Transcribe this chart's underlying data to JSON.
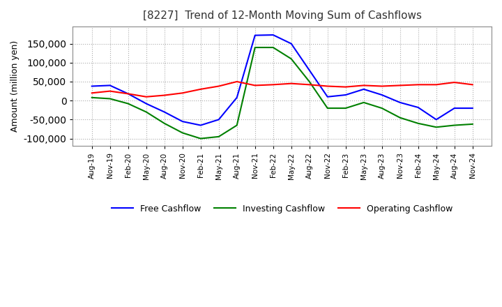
{
  "title": "[8227]  Trend of 12-Month Moving Sum of Cashflows",
  "ylabel": "Amount (million yen)",
  "ylim": [
    -120000,
    195000
  ],
  "yticks": [
    -100000,
    -50000,
    0,
    50000,
    100000,
    150000
  ],
  "background_color": "#ffffff",
  "grid_color": "#aaaaaa",
  "dates": [
    "Aug-19",
    "Nov-19",
    "Feb-20",
    "May-20",
    "Aug-20",
    "Nov-20",
    "Feb-21",
    "May-21",
    "Aug-21",
    "Nov-21",
    "Feb-22",
    "May-22",
    "Aug-22",
    "Nov-22",
    "Feb-23",
    "May-23",
    "Aug-23",
    "Nov-23",
    "Feb-24",
    "May-24",
    "Aug-24",
    "Nov-24"
  ],
  "operating": [
    20000,
    25000,
    18000,
    10000,
    14000,
    20000,
    30000,
    38000,
    50000,
    40000,
    42000,
    45000,
    42000,
    38000,
    36000,
    40000,
    38000,
    40000,
    42000,
    42000,
    48000,
    42000
  ],
  "investing": [
    8000,
    5000,
    -8000,
    -30000,
    -60000,
    -85000,
    -100000,
    -95000,
    -65000,
    140000,
    140000,
    110000,
    50000,
    -20000,
    -20000,
    -5000,
    -20000,
    -45000,
    -60000,
    -70000,
    -65000,
    -62000
  ],
  "free": [
    38000,
    40000,
    18000,
    -8000,
    -30000,
    -55000,
    -65000,
    -50000,
    8000,
    172000,
    173000,
    150000,
    80000,
    10000,
    15000,
    30000,
    15000,
    -5000,
    -18000,
    -50000,
    -20000,
    -20000
  ],
  "op_color": "#ff0000",
  "inv_color": "#008000",
  "free_color": "#0000ff",
  "line_width": 1.5
}
